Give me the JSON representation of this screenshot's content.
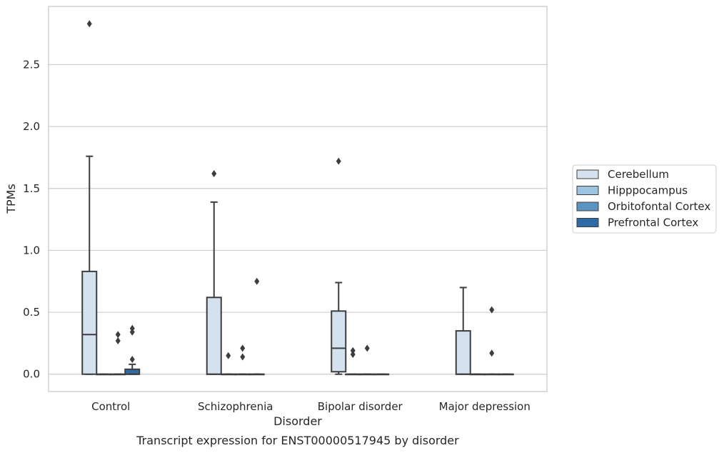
{
  "chart_data": {
    "type": "boxplot",
    "caption": "Transcript expression for ENST00000517945 by disorder",
    "xlabel": "Disorder",
    "ylabel": "TPMs",
    "ylim": [
      -0.14,
      2.97
    ],
    "yticks": [
      "0.0",
      "0.5",
      "1.0",
      "1.5",
      "2.0",
      "2.5"
    ],
    "ytick_values": [
      0.0,
      0.5,
      1.0,
      1.5,
      2.0,
      2.5
    ],
    "grid": true,
    "legend_position": "right",
    "categories": [
      "Control",
      "Schizophrenia",
      "Bipolar disorder",
      "Major depression"
    ],
    "hue": [
      {
        "name": "Cerebellum",
        "color": "#d4e2ef"
      },
      {
        "name": "Hipppocampus",
        "color": "#9dc3de"
      },
      {
        "name": "Orbitofontal Cortex",
        "color": "#5a95c2"
      },
      {
        "name": "Prefrontal Cortex",
        "color": "#2f6aa6"
      }
    ],
    "boxes": [
      [
        {
          "q1": 0.0,
          "median": 0.32,
          "q3": 0.83,
          "whisker_low": 0.0,
          "whisker_high": 1.76,
          "outliers": [
            2.83
          ]
        },
        {
          "q1": 0.0,
          "median": 0.0,
          "q3": 0.0,
          "whisker_low": 0.0,
          "whisker_high": 0.0,
          "outliers": []
        },
        {
          "q1": 0.0,
          "median": 0.0,
          "q3": 0.0,
          "whisker_low": 0.0,
          "whisker_high": 0.0,
          "outliers": [
            0.32,
            0.27
          ]
        },
        {
          "q1": 0.0,
          "median": 0.0,
          "q3": 0.04,
          "whisker_low": 0.0,
          "whisker_high": 0.08,
          "outliers": [
            0.37,
            0.34,
            0.12
          ]
        }
      ],
      [
        {
          "q1": 0.0,
          "median": 0.0,
          "q3": 0.62,
          "whisker_low": 0.0,
          "whisker_high": 1.39,
          "outliers": [
            1.62
          ]
        },
        {
          "q1": 0.0,
          "median": 0.0,
          "q3": 0.0,
          "whisker_low": 0.0,
          "whisker_high": 0.0,
          "outliers": [
            0.15
          ]
        },
        {
          "q1": 0.0,
          "median": 0.0,
          "q3": 0.0,
          "whisker_low": 0.0,
          "whisker_high": 0.0,
          "outliers": [
            0.21,
            0.14
          ]
        },
        {
          "q1": 0.0,
          "median": 0.0,
          "q3": 0.0,
          "whisker_low": 0.0,
          "whisker_high": 0.0,
          "outliers": [
            0.75
          ]
        }
      ],
      [
        {
          "q1": 0.02,
          "median": 0.21,
          "q3": 0.51,
          "whisker_low": 0.0,
          "whisker_high": 0.74,
          "outliers": [
            1.72
          ]
        },
        {
          "q1": 0.0,
          "median": 0.0,
          "q3": 0.0,
          "whisker_low": 0.0,
          "whisker_high": 0.0,
          "outliers": [
            0.19,
            0.16
          ]
        },
        {
          "q1": 0.0,
          "median": 0.0,
          "q3": 0.0,
          "whisker_low": 0.0,
          "whisker_high": 0.0,
          "outliers": [
            0.21
          ]
        },
        {
          "q1": 0.0,
          "median": 0.0,
          "q3": 0.0,
          "whisker_low": 0.0,
          "whisker_high": 0.0,
          "outliers": []
        }
      ],
      [
        {
          "q1": 0.0,
          "median": 0.0,
          "q3": 0.35,
          "whisker_low": 0.0,
          "whisker_high": 0.7,
          "outliers": []
        },
        {
          "q1": 0.0,
          "median": 0.0,
          "q3": 0.0,
          "whisker_low": 0.0,
          "whisker_high": 0.0,
          "outliers": []
        },
        {
          "q1": 0.0,
          "median": 0.0,
          "q3": 0.0,
          "whisker_low": 0.0,
          "whisker_high": 0.0,
          "outliers": [
            0.52,
            0.17
          ]
        },
        {
          "q1": 0.0,
          "median": 0.0,
          "q3": 0.0,
          "whisker_low": 0.0,
          "whisker_high": 0.0,
          "outliers": []
        }
      ]
    ]
  }
}
